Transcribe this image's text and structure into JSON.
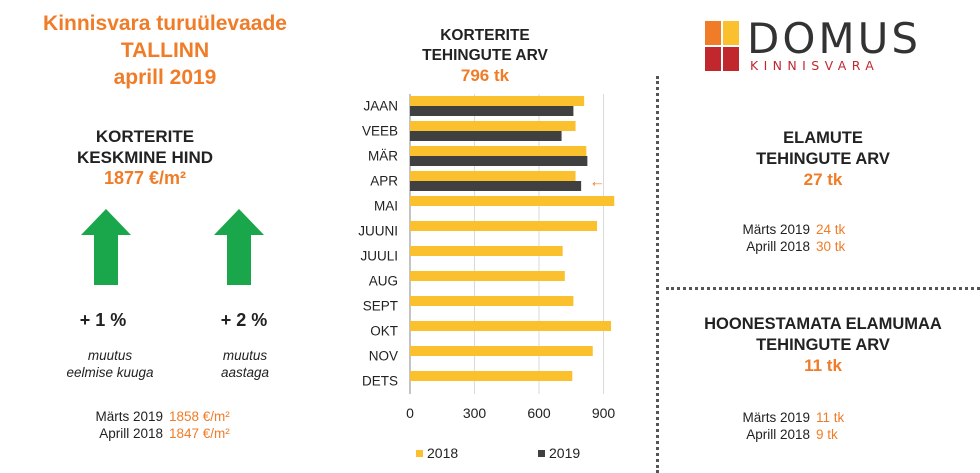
{
  "header": {
    "line1": "Kinnisvara turuülevaade",
    "line2": "TALLINN",
    "line3": "aprill 2019"
  },
  "avg_price": {
    "title_line1": "KORTERITE",
    "title_line2": "KESKMINE HIND",
    "value": "1877 €/m²"
  },
  "changes": [
    {
      "pct": "+ 1 %",
      "desc_line1": "muutus",
      "desc_line2": "eelmise kuuga",
      "direction": "up"
    },
    {
      "pct": "+ 2 %",
      "desc_line1": "muutus",
      "desc_line2": "aastaga",
      "direction": "up"
    }
  ],
  "price_history": [
    {
      "label": "Märts 2019",
      "value": "1858 €/m²"
    },
    {
      "label": "Aprill 2018",
      "value": "1847 €/m²"
    }
  ],
  "chart_header": {
    "title_line1": "KORTERITE",
    "title_line2": "TEHINGUTE ARV",
    "value": "796 tk"
  },
  "logo": {
    "word": "DOMUS",
    "sub": "KINNISVARA"
  },
  "houses": {
    "title_line1": "ELAMUTE",
    "title_line2": "TEHINGUTE ARV",
    "value": "27 tk",
    "history": [
      {
        "label": "Märts 2019",
        "value": "24 tk"
      },
      {
        "label": "Aprill 2018",
        "value": "30 tk"
      }
    ]
  },
  "land": {
    "title_line1": "HOONESTAMATA ELAMUMAA",
    "title_line2": "TEHINGUTE ARV",
    "value": "11 tk",
    "history": [
      {
        "label": "Märts 2019",
        "value": "11 tk"
      },
      {
        "label": "Aprill 2018",
        "value": "9 tk"
      }
    ]
  },
  "colors": {
    "accent": "#f07c28",
    "arrow": "#1aa64a",
    "series_2018": "#fbc02d",
    "series_2019": "#404040",
    "logo_orange": "#f07c28",
    "logo_yellow": "#fbc02d",
    "logo_red": "#c0282e"
  },
  "chart_data": {
    "type": "bar",
    "orientation": "horizontal",
    "categories": [
      "JAAN",
      "VEEB",
      "MÄR",
      "APR",
      "MAI",
      "JUUNI",
      "JUULI",
      "AUG",
      "SEPT",
      "OKT",
      "NOV",
      "DETS"
    ],
    "series": [
      {
        "name": "2018",
        "values": [
          810,
          770,
          820,
          770,
          950,
          870,
          710,
          720,
          760,
          935,
          850,
          755
        ]
      },
      {
        "name": "2019",
        "values": [
          760,
          705,
          825,
          796,
          null,
          null,
          null,
          null,
          null,
          null,
          null,
          null
        ]
      }
    ],
    "xlim": [
      0,
      1000
    ],
    "xticks": [
      "0",
      "300",
      "600",
      "900"
    ],
    "xtick_values": [
      0,
      300,
      600,
      900
    ],
    "highlight_category": "APR",
    "highlight_marker": "←",
    "grid": "vertical",
    "legend": "bottom"
  }
}
